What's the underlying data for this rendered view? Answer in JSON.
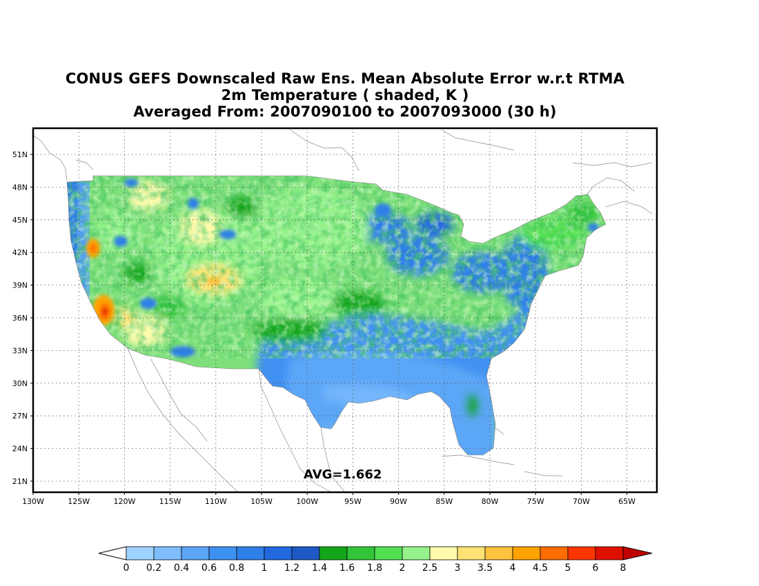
{
  "title": {
    "line1": "CONUS GEFS Downscaled Raw Ens. Mean Absolute Error w.r.t RTMA",
    "line2": "2m Temperature ( shaded, K )",
    "line3": "Averaged From: 2007090100 to 2007093000 (30 h)"
  },
  "map": {
    "lat_labels": [
      "51N",
      "48N",
      "45N",
      "42N",
      "39N",
      "36N",
      "33N",
      "30N",
      "27N",
      "24N",
      "21N"
    ],
    "lon_labels": [
      "130W",
      "125W",
      "120W",
      "115W",
      "110W",
      "105W",
      "100W",
      "95W",
      "90W",
      "85W",
      "80W",
      "75W",
      "70W",
      "65W"
    ],
    "avg_label": "AVG=1.662",
    "grid": "dotted"
  },
  "colorbar": {
    "labels": [
      "0",
      "0.2",
      "0.4",
      "0.6",
      "0.8",
      "1",
      "1.2",
      "1.4",
      "1.6",
      "1.8",
      "2",
      "2.5",
      "3",
      "3.5",
      "4",
      "4.5",
      "5",
      "6",
      "8"
    ],
    "colors": [
      "#9fd3ff",
      "#7fbdfd",
      "#5ba6f7",
      "#3f91f1",
      "#2f7fe8",
      "#2268df",
      "#1d58c4",
      "#15a51b",
      "#33c43a",
      "#52e052",
      "#96f28b",
      "#fffaaa",
      "#ffe274",
      "#ffc23e",
      "#ffa300",
      "#ff6c00",
      "#ff3500",
      "#e01000"
    ],
    "under_color": "#ffffff",
    "over_color": "#c00000"
  },
  "chart_data": {
    "type": "heatmap",
    "title": "CONUS GEFS Downscaled Raw Ens. Mean Absolute Error w.r.t RTMA",
    "subtitle": "2m Temperature ( shaded, K )",
    "lat_range": [
      20,
      53
    ],
    "lon_range": [
      -130,
      -62
    ],
    "legend_levels": [
      0,
      0.2,
      0.4,
      0.6,
      0.8,
      1,
      1.2,
      1.4,
      1.6,
      1.8,
      2,
      2.5,
      3,
      3.5,
      4,
      4.5,
      5,
      6,
      8
    ],
    "average": 1.662
  }
}
